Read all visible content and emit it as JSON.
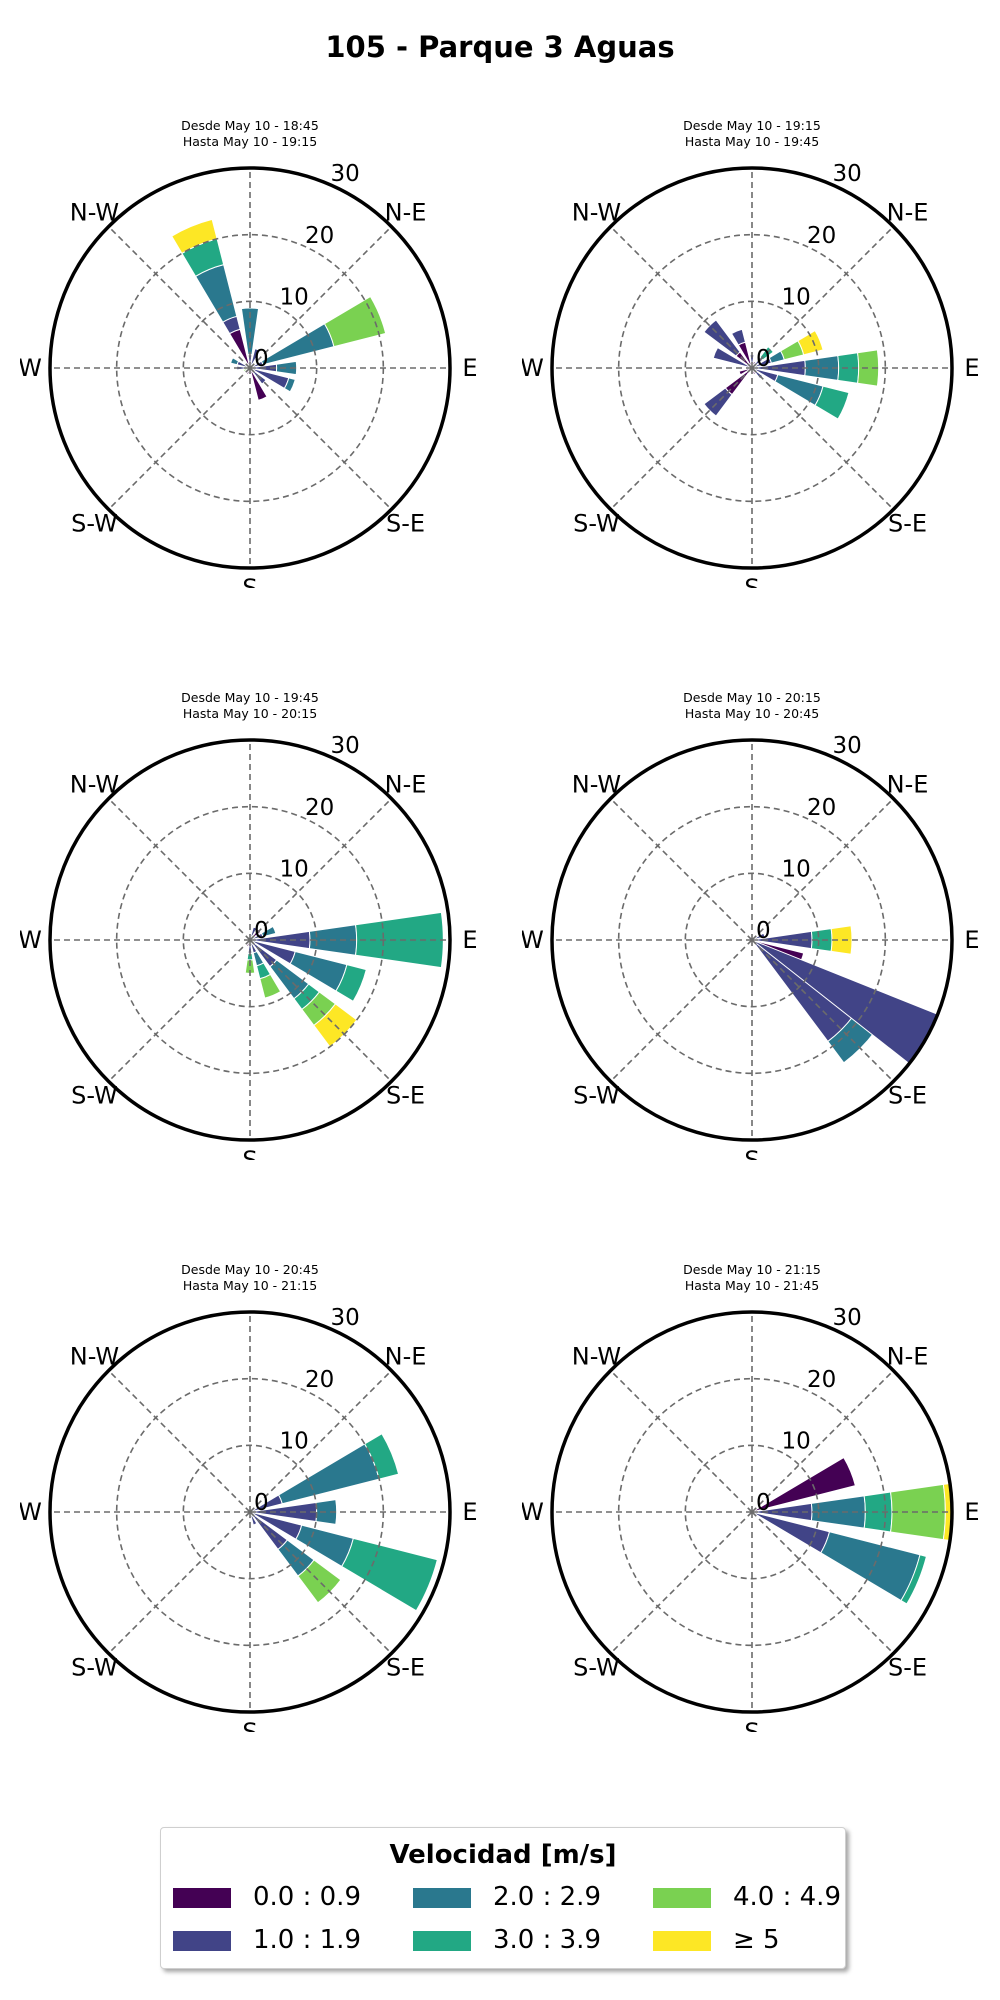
{
  "title": "105 - Parque 3 Aguas",
  "directions": [
    "N",
    "N-E",
    "E",
    "S-E",
    "S",
    "S-W",
    "W",
    "N-W"
  ],
  "radial_ticks": [
    "0",
    "10",
    "20",
    "30"
  ],
  "legend": {
    "title": "Velocidad [m/s]",
    "bins": [
      {
        "label": "0.0 : 0.9",
        "color": "#440154"
      },
      {
        "label": "1.0 : 1.9",
        "color": "#414487"
      },
      {
        "label": "2.0 : 2.9",
        "color": "#2a788e"
      },
      {
        "label": "3.0 : 3.9",
        "color": "#22a884"
      },
      {
        "label": "4.0 : 4.9",
        "color": "#7ad151"
      },
      {
        "label": "≥ 5",
        "color": "#fde725"
      }
    ]
  },
  "chart_data": [
    {
      "type": "windrose",
      "line1": "Desde May 10 - 18:45",
      "line2": "Hasta May 10 - 19:15",
      "rmax": 30,
      "series": [
        {
          "dir": 0,
          "values": [
            0,
            2,
            7,
            0,
            0,
            0
          ]
        },
        {
          "dir": 22.5,
          "values": [
            0,
            3,
            0,
            0,
            0,
            0
          ]
        },
        {
          "dir": 67.5,
          "values": [
            0,
            2,
            11,
            0,
            8,
            0
          ]
        },
        {
          "dir": 90,
          "values": [
            0,
            4,
            3,
            0,
            0,
            0
          ]
        },
        {
          "dir": 112.5,
          "values": [
            0,
            6,
            1,
            0,
            0,
            0
          ]
        },
        {
          "dir": 135,
          "values": [
            0,
            3,
            0,
            0,
            0,
            0
          ]
        },
        {
          "dir": 157.5,
          "values": [
            5,
            0,
            0,
            0,
            0,
            0
          ]
        },
        {
          "dir": 202.5,
          "values": [
            1,
            0,
            0,
            0,
            0,
            0
          ]
        },
        {
          "dir": 247.5,
          "values": [
            0,
            0,
            0,
            0,
            1,
            0
          ]
        },
        {
          "dir": 270,
          "values": [
            0,
            2,
            0,
            0,
            0,
            0
          ]
        },
        {
          "dir": 292.5,
          "values": [
            0,
            2,
            1,
            0,
            0,
            0
          ]
        },
        {
          "dir": 337.5,
          "values": [
            6,
            2,
            8,
            4,
            0,
            3
          ]
        }
      ]
    },
    {
      "type": "windrose",
      "line1": "Desde May 10 - 19:15",
      "line2": "Hasta May 10 - 19:45",
      "rmax": 30,
      "series": [
        {
          "dir": 0,
          "values": [
            0,
            2,
            0,
            0,
            0,
            0
          ]
        },
        {
          "dir": 22.5,
          "values": [
            1,
            0,
            0,
            0,
            0,
            0
          ]
        },
        {
          "dir": 45,
          "values": [
            0,
            2,
            0,
            2,
            0,
            0
          ]
        },
        {
          "dir": 67.5,
          "values": [
            0,
            3,
            2,
            0,
            3,
            3
          ]
        },
        {
          "dir": 90,
          "values": [
            0,
            8,
            5,
            3,
            3,
            0
          ]
        },
        {
          "dir": 112.5,
          "values": [
            0,
            4,
            7,
            4,
            0,
            0
          ]
        },
        {
          "dir": 135,
          "values": [
            0,
            2,
            0,
            0,
            0,
            0
          ]
        },
        {
          "dir": 157.5,
          "values": [
            1,
            0,
            0,
            0,
            0,
            0
          ]
        },
        {
          "dir": 202.5,
          "values": [
            0,
            0,
            0,
            0,
            0,
            0
          ]
        },
        {
          "dir": 225,
          "values": [
            5,
            4,
            0,
            0,
            0,
            0
          ]
        },
        {
          "dir": 247.5,
          "values": [
            2,
            0,
            0,
            0,
            0,
            0
          ]
        },
        {
          "dir": 270,
          "values": [
            0,
            0,
            0,
            0,
            0,
            0
          ]
        },
        {
          "dir": 292.5,
          "values": [
            0,
            6,
            0,
            0,
            0,
            0
          ]
        },
        {
          "dir": 315,
          "values": [
            3,
            6,
            0,
            0,
            0,
            0
          ]
        },
        {
          "dir": 337.5,
          "values": [
            4,
            2,
            0,
            0,
            0,
            0
          ]
        }
      ]
    },
    {
      "type": "windrose",
      "line1": "Desde May 10 - 19:45",
      "line2": "Hasta May 10 - 20:15",
      "rmax": 30,
      "series": [
        {
          "dir": 22.5,
          "values": [
            0,
            2,
            0,
            0,
            0,
            0
          ]
        },
        {
          "dir": 45,
          "values": [
            2,
            0,
            0,
            0,
            0,
            0
          ]
        },
        {
          "dir": 67.5,
          "values": [
            0,
            2,
            2,
            0,
            0,
            0
          ]
        },
        {
          "dir": 90,
          "values": [
            0,
            9,
            7,
            13,
            0,
            0
          ]
        },
        {
          "dir": 112.5,
          "values": [
            0,
            7,
            8,
            3,
            0,
            0
          ]
        },
        {
          "dir": 135,
          "values": [
            0,
            5,
            6,
            2,
            3,
            4
          ]
        },
        {
          "dir": 157.5,
          "values": [
            0,
            2,
            2,
            2,
            3,
            0
          ]
        },
        {
          "dir": 180,
          "values": [
            0,
            2,
            0,
            1,
            2,
            0
          ]
        },
        {
          "dir": 202.5,
          "values": [
            1,
            0,
            0,
            0,
            0,
            0
          ]
        }
      ]
    },
    {
      "type": "windrose",
      "line1": "Desde May 10 - 20:15",
      "line2": "Hasta May 10 - 20:45",
      "rmax": 30,
      "series": [
        {
          "dir": 67.5,
          "values": [
            0,
            2,
            0,
            0,
            0,
            0
          ]
        },
        {
          "dir": 90,
          "values": [
            0,
            9,
            0,
            3,
            0,
            3
          ]
        },
        {
          "dir": 112.5,
          "values": [
            8,
            0,
            0,
            0,
            0,
            0
          ]
        },
        {
          "dir": 135,
          "values": [
            0,
            19,
            4,
            0,
            0,
            0
          ]
        },
        {
          "dir": 157.5,
          "values": [
            0,
            0,
            0,
            0,
            0,
            0
          ]
        },
        {
          "dir": 112.5,
          "values": [
            0,
            0,
            0,
            0,
            0,
            0
          ]
        },
        {
          "dir": 120,
          "values": [
            0,
            30,
            0,
            0,
            0,
            0
          ]
        }
      ]
    },
    {
      "type": "windrose",
      "line1": "Desde May 10 - 20:45",
      "line2": "Hasta May 10 - 21:15",
      "rmax": 30,
      "series": [
        {
          "dir": 67.5,
          "values": [
            0,
            5,
            15,
            3,
            0,
            0
          ]
        },
        {
          "dir": 90,
          "values": [
            0,
            10,
            3,
            0,
            0,
            0
          ]
        },
        {
          "dir": 112.5,
          "values": [
            0,
            8,
            8,
            13,
            0,
            0
          ]
        },
        {
          "dir": 135,
          "values": [
            0,
            7,
            5,
            0,
            5,
            0
          ]
        },
        {
          "dir": 157.5,
          "values": [
            0,
            2,
            0,
            0,
            0,
            0
          ]
        },
        {
          "dir": 180,
          "values": [
            1,
            0,
            0,
            0,
            0,
            0
          ]
        }
      ]
    },
    {
      "type": "windrose",
      "line1": "Desde May 10 - 21:15",
      "line2": "Hasta May 10 - 21:45",
      "rmax": 30,
      "series": [
        {
          "dir": 67.5,
          "values": [
            16,
            0,
            0,
            0,
            0,
            0
          ]
        },
        {
          "dir": 90,
          "values": [
            0,
            9,
            8,
            4,
            8,
            1
          ]
        },
        {
          "dir": 112.5,
          "values": [
            0,
            12,
            14,
            1,
            0,
            0
          ]
        },
        {
          "dir": 135,
          "values": [
            0,
            0,
            0,
            0,
            0,
            0
          ]
        }
      ]
    }
  ]
}
